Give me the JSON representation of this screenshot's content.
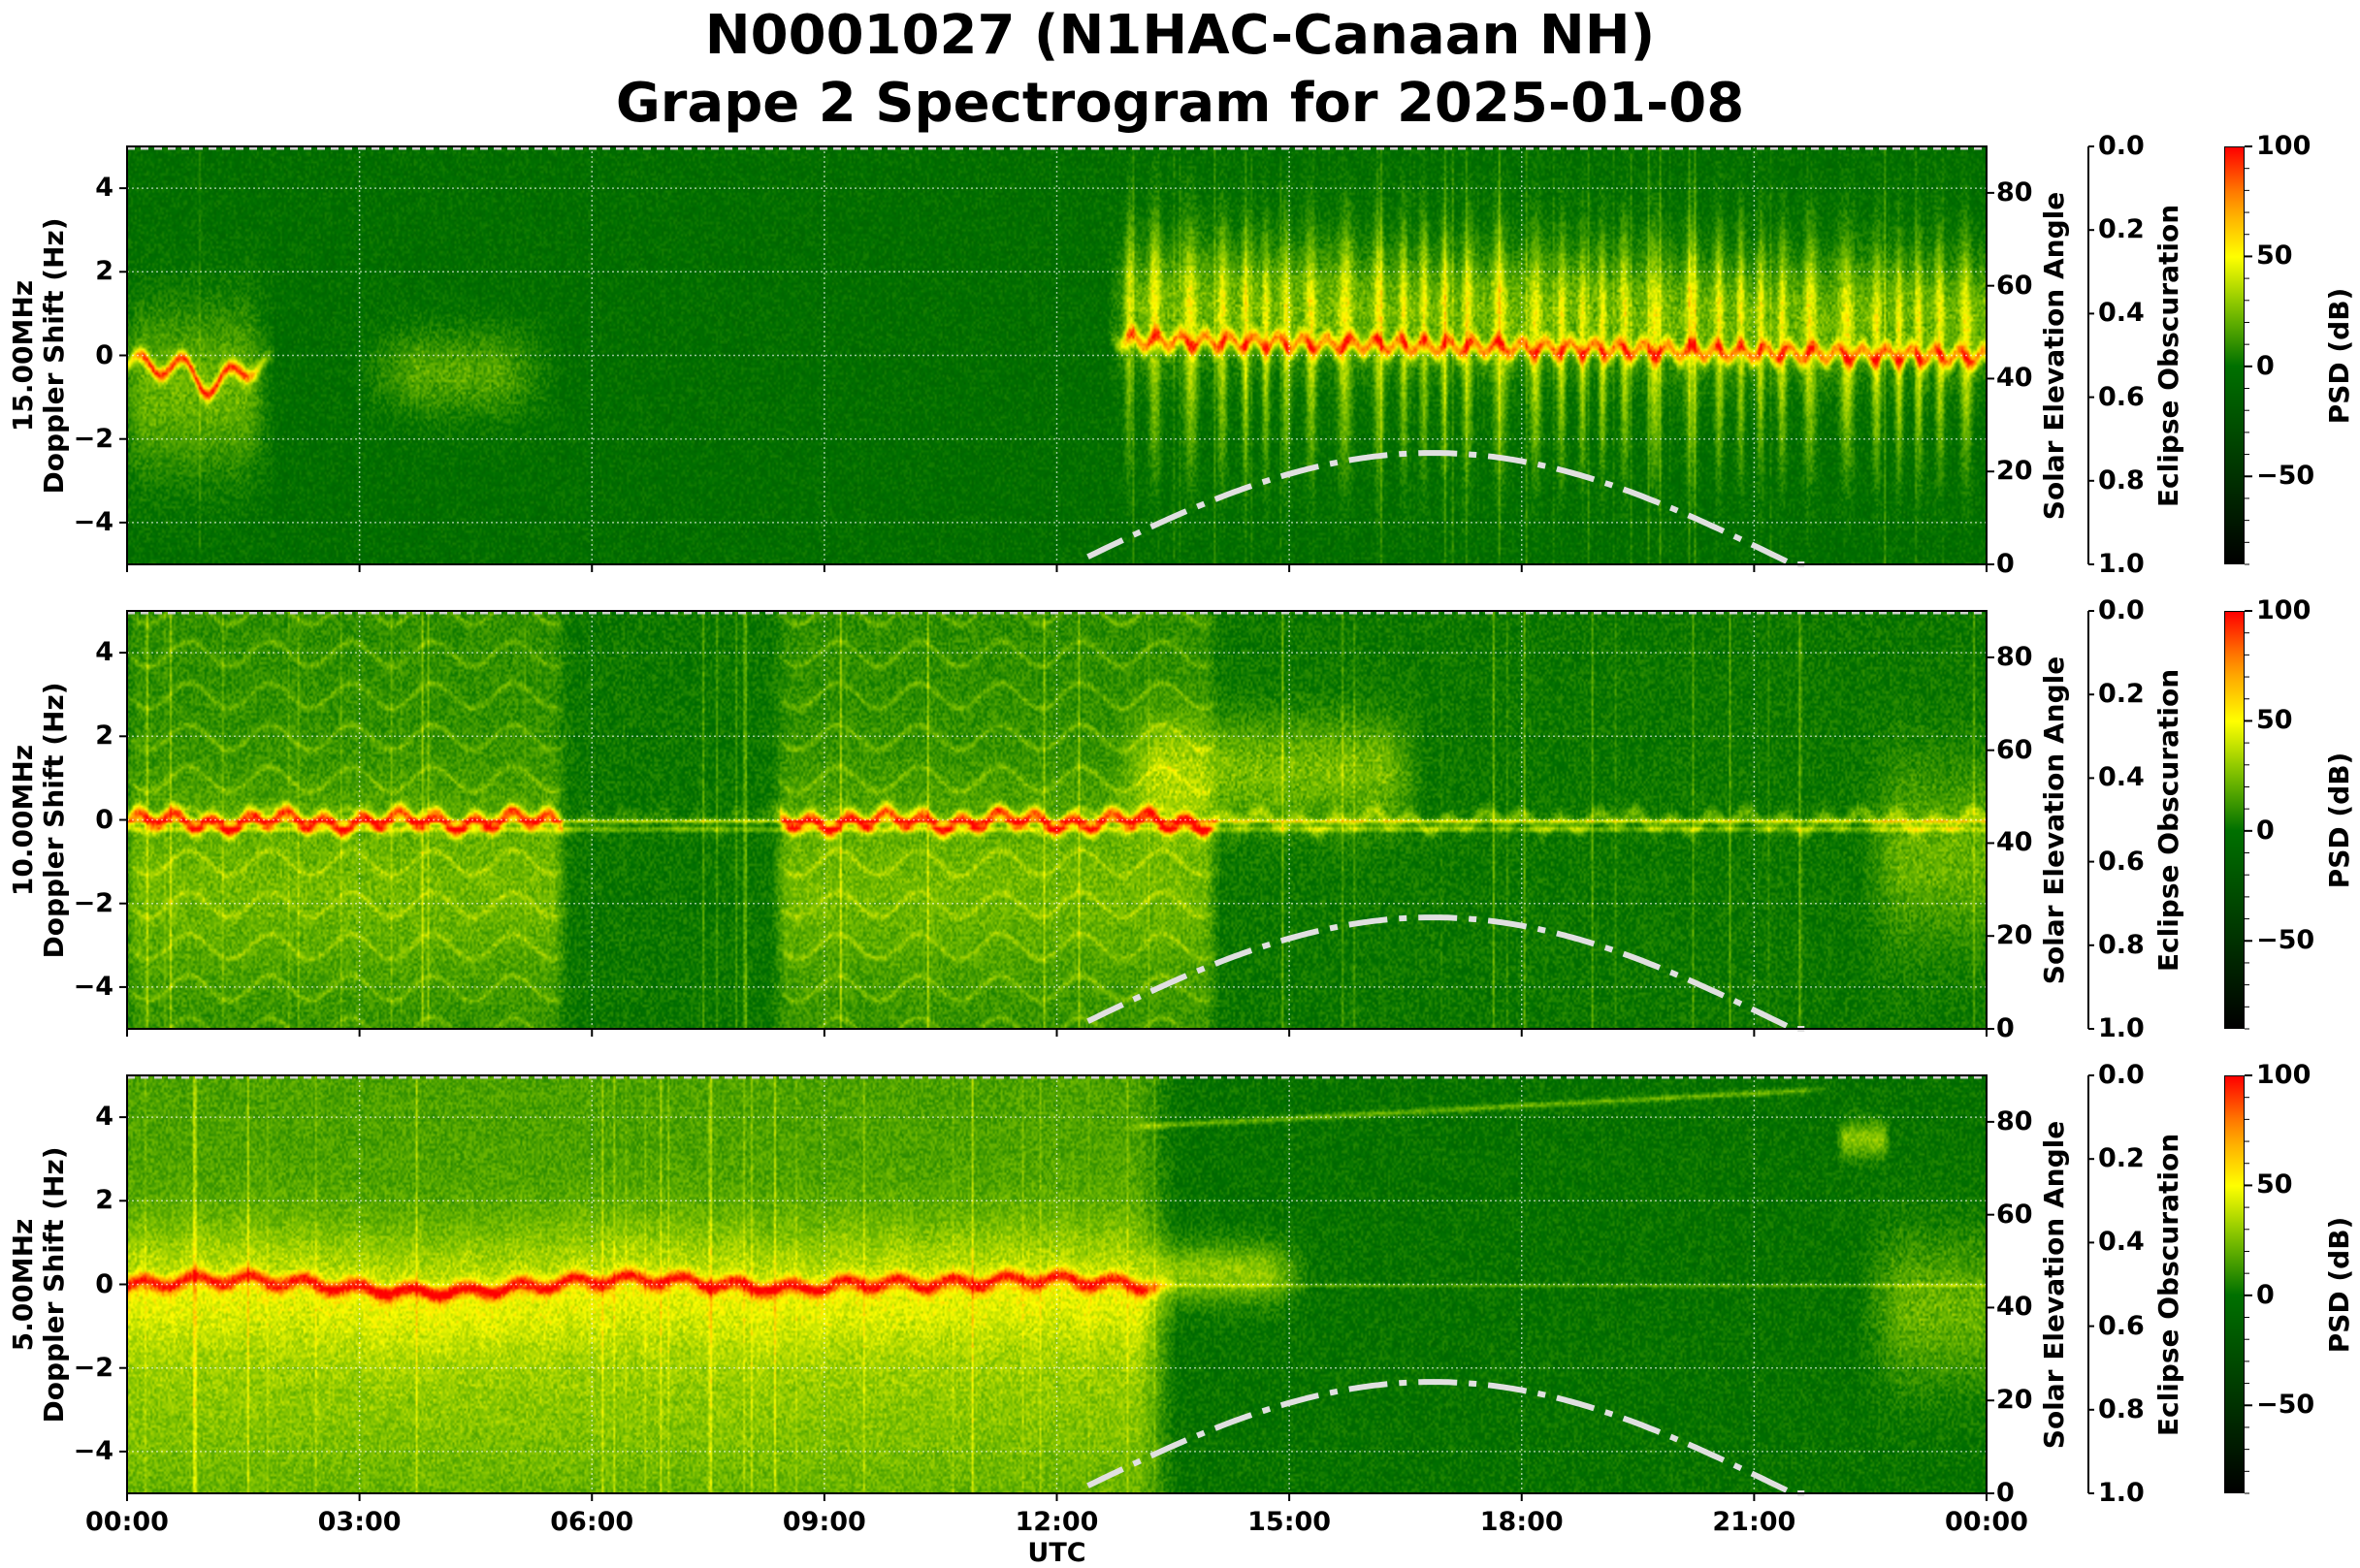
{
  "title": {
    "line1": "N0001027 (N1HAC-Canaan NH)",
    "line2": "Grape 2 Spectrogram for 2025-01-08"
  },
  "colors": {
    "cmap_low": "#000000",
    "cmap_zero": "#007000",
    "cmap_mid": "#ffff00",
    "cmap_high": "#ff0000",
    "sun_curve": "#e0e0e0",
    "grid": "#ffffff"
  },
  "chart_data": {
    "type": "heatmap",
    "title": "N0001027 (N1HAC-Canaan NH) Grape 2 Spectrogram for 2025-01-08",
    "xlabel": "UTC",
    "x_ticks": [
      "00:00",
      "03:00",
      "06:00",
      "09:00",
      "12:00",
      "15:00",
      "18:00",
      "21:00",
      "00:00"
    ],
    "xlim_hours": [
      0,
      24
    ],
    "grid": true,
    "panels": [
      {
        "frequency": "15.00MHz",
        "ylabel": "Doppler Shift (Hz)",
        "ylim": [
          -5,
          5
        ],
        "y_ticks": [
          "4",
          "2",
          "0",
          "−2",
          "−4"
        ],
        "right_ylabel": "Solar Elevation Angle",
        "right_ylim": [
          0,
          90
        ],
        "right_ticks": [
          "80",
          "60",
          "40",
          "20",
          "0"
        ],
        "eclipse_label": "Eclipse Obscuration",
        "eclipse_ylim": [
          0.0,
          1.0
        ],
        "eclipse_ticks": [
          "0.0",
          "0.2",
          "0.4",
          "0.6",
          "0.8",
          "1.0"
        ],
        "colorbar_label": "PSD (dB)",
        "colorbar_range": [
          -90,
          100
        ],
        "colorbar_ticks": [
          "100",
          "50",
          "0",
          "−50"
        ]
      },
      {
        "frequency": "10.00MHz",
        "ylabel": "Doppler Shift (Hz)",
        "ylim": [
          -5,
          5
        ],
        "y_ticks": [
          "4",
          "2",
          "0",
          "−2",
          "−4"
        ],
        "right_ylabel": "Solar Elevation Angle",
        "right_ylim": [
          0,
          90
        ],
        "right_ticks": [
          "80",
          "60",
          "40",
          "20",
          "0"
        ],
        "eclipse_label": "Eclipse Obscuration",
        "eclipse_ylim": [
          0.0,
          1.0
        ],
        "eclipse_ticks": [
          "0.0",
          "0.2",
          "0.4",
          "0.6",
          "0.8",
          "1.0"
        ],
        "colorbar_label": "PSD (dB)",
        "colorbar_range": [
          -90,
          100
        ],
        "colorbar_ticks": [
          "100",
          "50",
          "0",
          "−50"
        ]
      },
      {
        "frequency": "5.00MHz",
        "ylabel": "Doppler Shift (Hz)",
        "ylim": [
          -5,
          5
        ],
        "y_ticks": [
          "4",
          "2",
          "0",
          "−2",
          "−4"
        ],
        "right_ylabel": "Solar Elevation Angle",
        "right_ylim": [
          0,
          90
        ],
        "right_ticks": [
          "80",
          "60",
          "40",
          "20",
          "0"
        ],
        "eclipse_label": "Eclipse Obscuration",
        "eclipse_ylim": [
          0.0,
          1.0
        ],
        "eclipse_ticks": [
          "0.0",
          "0.2",
          "0.4",
          "0.6",
          "0.8",
          "1.0"
        ],
        "colorbar_label": "PSD (dB)",
        "colorbar_range": [
          -90,
          100
        ],
        "colorbar_ticks": [
          "100",
          "50",
          "0",
          "−50"
        ]
      }
    ],
    "solar_elevation": {
      "x_hours": [
        12.4,
        13,
        14,
        15,
        16,
        16.85,
        18,
        19,
        20,
        21,
        21.7
      ],
      "y_degrees": [
        0,
        6.4,
        13.7,
        19.5,
        23.0,
        24.0,
        22.2,
        18.0,
        11.7,
        4.1,
        0
      ]
    }
  }
}
